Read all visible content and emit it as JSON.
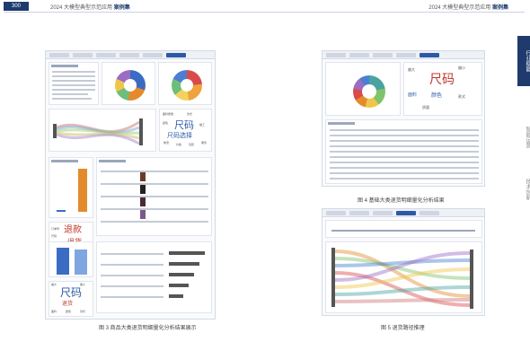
{
  "header": {
    "page_number": "300",
    "left_title": "2024 大模型典型示范应用",
    "left_title_bold": "案例集",
    "right_title": "2024 大模型典型示范应用",
    "right_title_bold": "案例集"
  },
  "side_nav": {
    "items": [
      {
        "label": "行业赋能"
      },
      {
        "label": "智能运营"
      },
      {
        "label": "技术创新"
      }
    ]
  },
  "figures": {
    "left_caption": "图 3 商品大类退货明细量化分析结果展示",
    "top_right_caption": "图 4 基础大类退货明细量化分析结果",
    "bottom_right_caption": "图 5 退货路径推理"
  },
  "wordcloud_a": {
    "big": "尺码",
    "mid": "尺码选择",
    "items": [
      "面料质量",
      "款式",
      "颜色",
      "做工",
      "物流",
      "价格",
      "包装",
      "服务",
      "材质"
    ]
  },
  "wordcloud_b": {
    "big": "退款",
    "mid": "退货",
    "items": [
      "订单号",
      "尺码",
      "换货",
      "客服",
      "快递",
      "售后",
      "运费"
    ]
  },
  "wordcloud_c": {
    "big": "尺码",
    "mid": "退货",
    "items": [
      "偏大",
      "偏小",
      "面料",
      "颜色",
      "款式",
      "质量",
      "做工"
    ]
  },
  "wordcloud_d": {
    "big": "尺码",
    "items": [
      "偏大",
      "偏小",
      "面料",
      "颜色",
      "款式",
      "质量"
    ]
  },
  "colors": {
    "accent": "#1f3b6e",
    "tab_active": "#2d5aa6",
    "blue": "#3b6cc4",
    "orange": "#e38b2c"
  }
}
